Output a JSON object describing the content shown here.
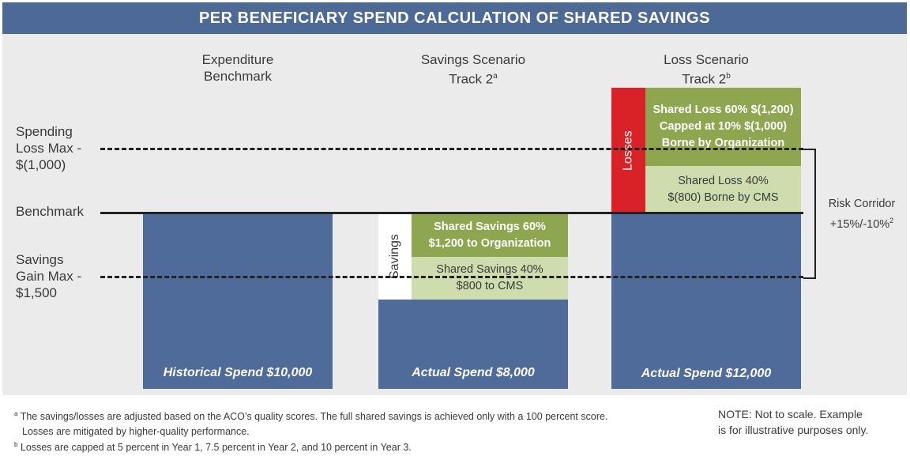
{
  "title": "PER BENEFICIARY SPEND CALCULATION OF SHARED SAVINGS",
  "columns": {
    "benchmark": {
      "line1": "Expenditure",
      "line2": "Benchmark"
    },
    "savings": {
      "line1": "Savings Scenario",
      "line2": "Track 2",
      "sup": "a"
    },
    "loss": {
      "line1": "Loss Scenario",
      "line2": "Track 2",
      "sup": "b"
    }
  },
  "side_labels": {
    "spending_loss": [
      "Spending",
      "Loss Max -",
      "$(1,000)"
    ],
    "benchmark": "Benchmark",
    "savings_gain": [
      "Savings",
      "Gain Max -",
      "$1,500"
    ]
  },
  "bars": {
    "historical": "Historical Spend $10,000",
    "actual_savings": "Actual Spend $8,000",
    "actual_loss": "Actual Spend $12,000"
  },
  "savings_blocks": {
    "label": "Savings",
    "org": [
      "Shared Savings 60%",
      "$1,200 to Organization"
    ],
    "cms": [
      "Shared Savings 40%",
      "$800 to CMS"
    ]
  },
  "loss_blocks": {
    "label": "Losses",
    "org": [
      "Shared Loss 60% $(1,200)",
      "Capped at 10% $(1,000)",
      "Borne by Organization"
    ],
    "cms": [
      "Shared Loss 40%",
      "$(800) Borne by CMS"
    ]
  },
  "risk_corridor": {
    "line1": "Risk Corridor",
    "line2": "+15%/-10%",
    "sup": "2"
  },
  "footnotes": {
    "a_mark": "a",
    "a_line1": "The savings/losses are adjusted based on the ACO’s quality scores. The full shared savings is achieved only with a 100 percent score.",
    "a_line2": "Losses are mitigated by higher-quality performance.",
    "b_mark": "b",
    "b_line": "Losses are capped at 5 percent in Year 1, 7.5 percent in Year 2, and 10 percent in Year 3."
  },
  "note": [
    "NOTE:  Not to scale. Example",
    "is for illustrative purposes only."
  ],
  "colors": {
    "header_blue": "#4d6a97",
    "bar_blue": "#4e6b9a",
    "green_dark": "#8ea64f",
    "green_light": "#cfdcae",
    "loss_red": "#d92128",
    "background_gray": "#ebebeb"
  }
}
